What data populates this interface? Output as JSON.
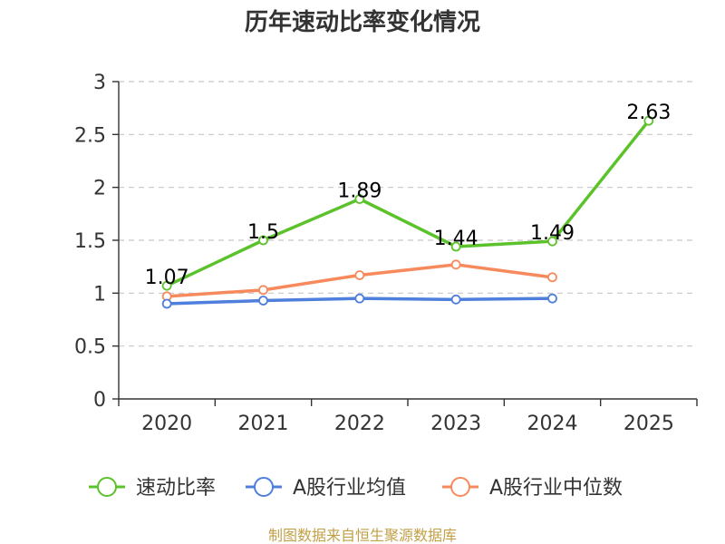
{
  "chart_data": {
    "type": "line",
    "title": "历年速动比率变化情况",
    "categories": [
      "2020",
      "2021",
      "2022",
      "2023",
      "2024",
      "2025"
    ],
    "ylim": [
      0,
      3
    ],
    "yticks": [
      "0",
      "0.5",
      "1",
      "1.5",
      "2",
      "2.5",
      "3"
    ],
    "ytick_values": [
      0,
      0.5,
      1,
      1.5,
      2,
      2.5,
      3
    ],
    "grid": true,
    "legend_position": "bottom",
    "series": [
      {
        "name": "速动比率",
        "color": "#5cc22c",
        "values": [
          1.07,
          1.5,
          1.89,
          1.44,
          1.49,
          2.63
        ],
        "labels": [
          "1.07",
          "1.5",
          "1.89",
          "1.44",
          "1.49",
          "2.63"
        ],
        "show_labels": true
      },
      {
        "name": "A股行业均值",
        "color": "#4e7fdc",
        "values": [
          0.9,
          0.93,
          0.95,
          0.94,
          0.95,
          null
        ],
        "show_labels": false
      },
      {
        "name": "A股行业中位数",
        "color": "#f78a5c",
        "values": [
          0.97,
          1.03,
          1.17,
          1.27,
          1.15,
          null
        ],
        "show_labels": false
      }
    ]
  },
  "source_text": "制图数据来自恒生聚源数据库"
}
